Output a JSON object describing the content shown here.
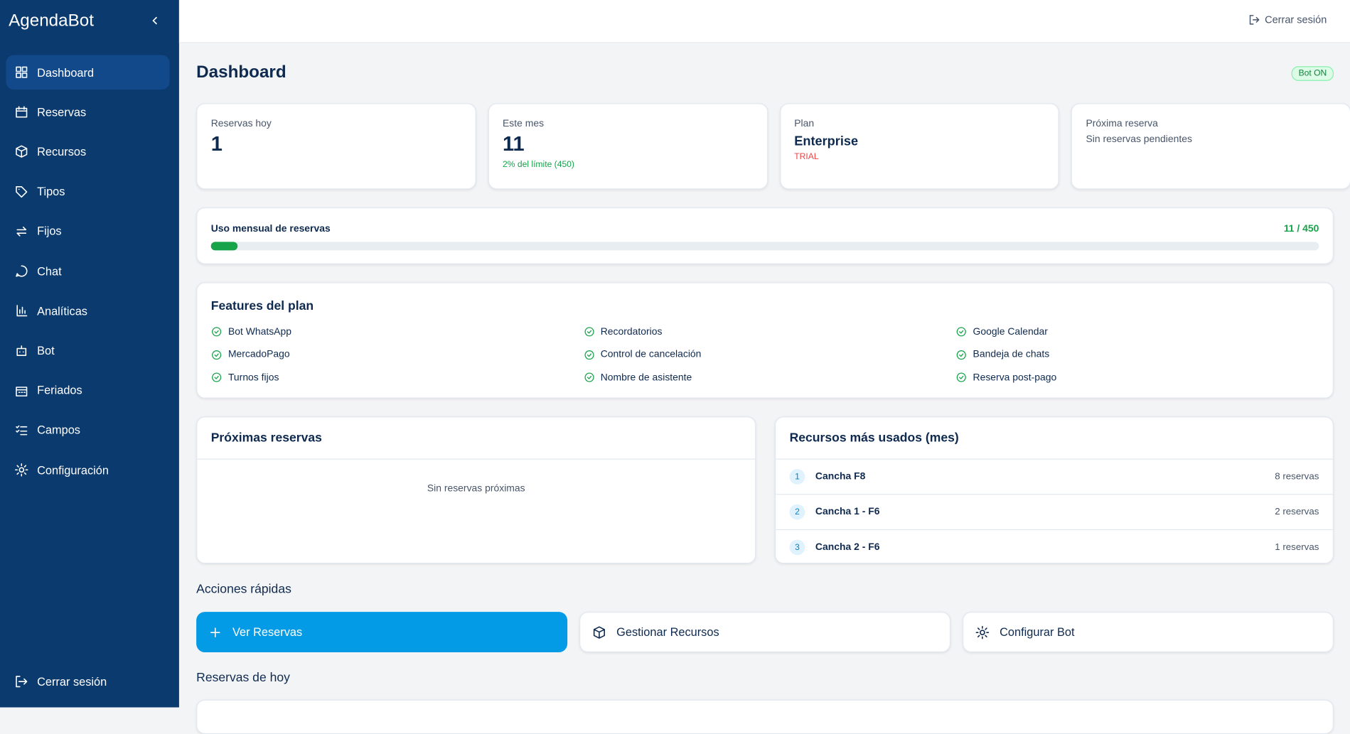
{
  "sidebar": {
    "brand": "AgendaBot",
    "nav": [
      "Dashboard",
      "Reservas",
      "Recursos",
      "Tipos",
      "Fijos",
      "Chat",
      "Analíticas",
      "Bot",
      "Feriados",
      "Campos",
      "Configuración"
    ],
    "logout": "Cerrar sesión"
  },
  "header": {
    "logout": "Cerrar sesión"
  },
  "page": {
    "title": "Dashboard",
    "status": "Bot ON"
  },
  "stats": [
    {
      "label": "Reservas hoy",
      "value": 1
    },
    {
      "label": "Este mes",
      "value": 11,
      "note": "2% del límite (450)"
    },
    {
      "label": "Plan",
      "value": "Enterprise",
      "note": "TRIAL"
    },
    {
      "label": "Próxima reserva",
      "note": "Sin reservas pendientes"
    }
  ],
  "usage": {
    "label": "Uso mensual de reservas",
    "text": "11 / 450",
    "used": 11,
    "limit": 450
  },
  "features": {
    "title": "Features del plan",
    "items": [
      "Bot WhatsApp",
      "Recordatorios",
      "Google Calendar",
      "MercadoPago",
      "Control de cancelación",
      "Bandeja de chats",
      "Turnos fijos",
      "Nombre de asistente",
      "Reserva post-pago"
    ]
  },
  "upcoming": {
    "title": "Próximas reservas",
    "empty": "Sin reservas próximas"
  },
  "resources": {
    "title": "Recursos más usados (mes)",
    "rows": [
      {
        "rank": 1,
        "name": "Cancha F8",
        "count": "8 reservas"
      },
      {
        "rank": 2,
        "name": "Cancha 1 - F6",
        "count": "2 reservas"
      },
      {
        "rank": 3,
        "name": "Cancha 2 - F6",
        "count": "1 reservas"
      }
    ]
  },
  "actions": {
    "title": "Acciones rápidas",
    "buttons": [
      "Ver Reservas",
      "Gestionar Recursos",
      "Configurar Bot"
    ]
  },
  "today": {
    "title": "Reservas de hoy"
  }
}
